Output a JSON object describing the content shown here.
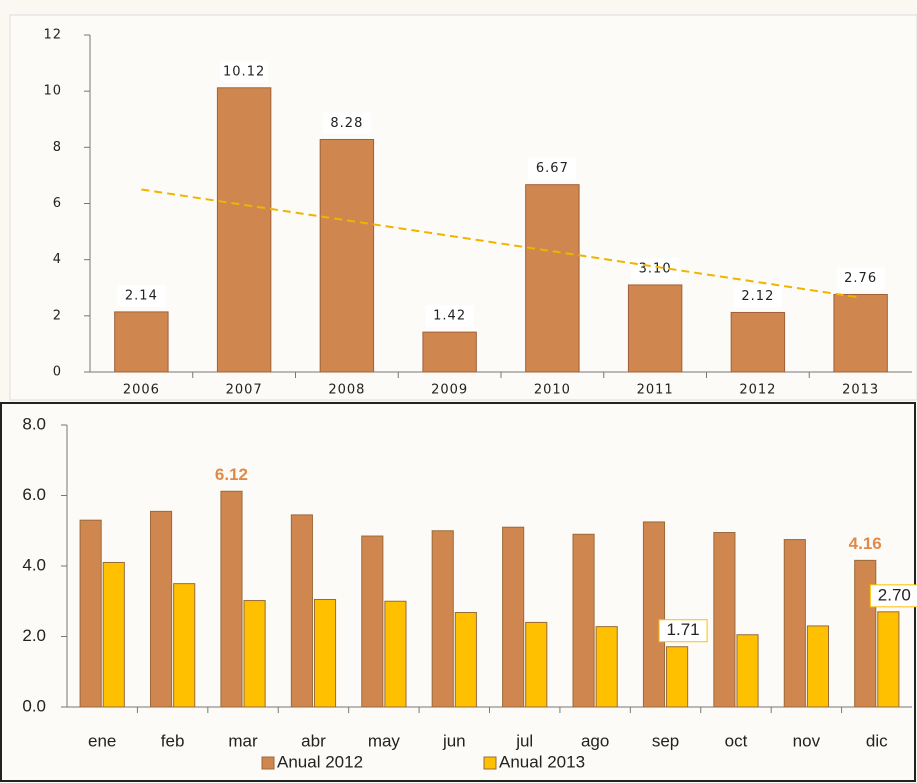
{
  "chart_data": [
    {
      "type": "bar",
      "categories": [
        "2006",
        "2007",
        "2008",
        "2009",
        "2010",
        "2011",
        "2012",
        "2013"
      ],
      "values": [
        2.14,
        10.12,
        8.28,
        1.42,
        6.67,
        3.1,
        2.12,
        2.76
      ],
      "value_labels": [
        "2.14",
        "10.12",
        "8.28",
        "1.42",
        "6.67",
        "3.10",
        "2.12",
        "2.76"
      ],
      "color": "#d0874f",
      "ylim": [
        0,
        12
      ],
      "yticks": [
        0,
        2,
        4,
        6,
        8,
        10,
        12
      ],
      "trendline": {
        "values": [
          6.5,
          2.65
        ],
        "color": "#f0b400"
      }
    },
    {
      "type": "grouped-bar",
      "categories": [
        "ene",
        "feb",
        "mar",
        "abr",
        "may",
        "jun",
        "jul",
        "ago",
        "sep",
        "oct",
        "nov",
        "dic"
      ],
      "series": [
        {
          "name": "Anual 2012",
          "color": "#d0874f",
          "values": [
            5.3,
            5.55,
            6.12,
            5.45,
            4.85,
            5.0,
            5.1,
            4.9,
            5.25,
            4.95,
            4.75,
            4.16
          ],
          "value_labels": [
            null,
            null,
            "6.12",
            null,
            null,
            null,
            null,
            null,
            null,
            null,
            null,
            "4.16"
          ]
        },
        {
          "name": "Anual 2013",
          "color": "#ffc000",
          "values": [
            4.1,
            3.5,
            3.02,
            3.05,
            3.0,
            2.68,
            2.4,
            2.28,
            1.71,
            2.05,
            2.3,
            2.7
          ],
          "value_labels": [
            null,
            null,
            null,
            null,
            null,
            null,
            null,
            null,
            "1.71",
            null,
            null,
            "2.70"
          ]
        }
      ],
      "ylim": [
        0,
        8
      ],
      "yticks": [
        {
          "value": 0,
          "label": "0.0"
        },
        {
          "value": 2,
          "label": "2.0"
        },
        {
          "value": 4,
          "label": "4.0"
        },
        {
          "value": 6,
          "label": "6.0"
        },
        {
          "value": 8,
          "label": "8.0"
        }
      ]
    }
  ]
}
